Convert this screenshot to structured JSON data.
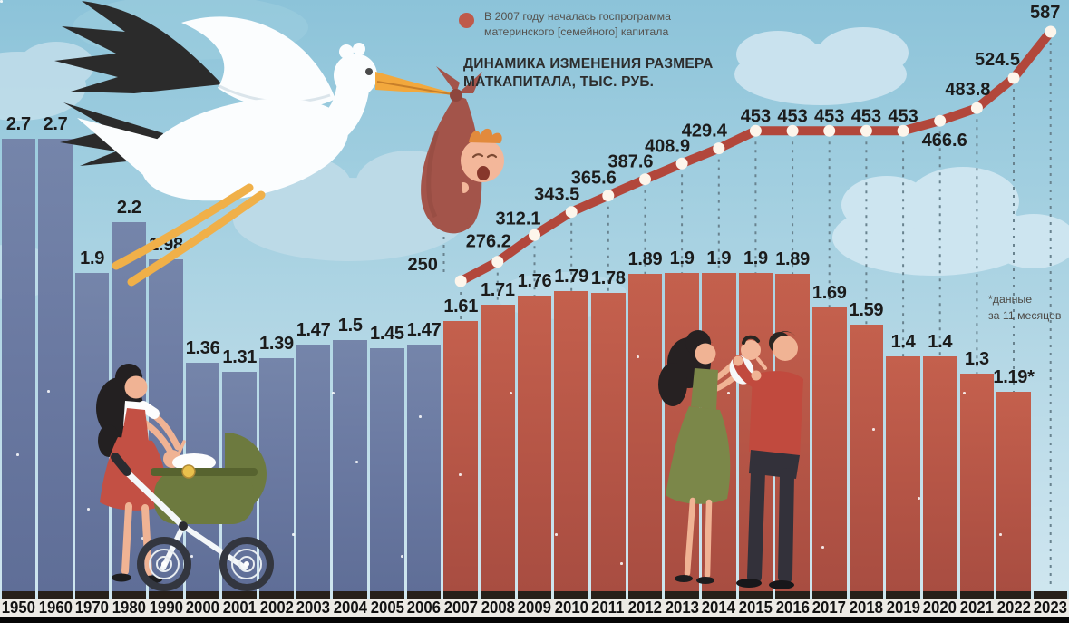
{
  "title": {
    "line1": "ДИНАМИКА ИЗМЕНЕНИЯ РАЗМЕРА",
    "line2": "МАТКАПИТАЛА, ТЫС. РУБ."
  },
  "legend": {
    "line1": "В 2007 году началась госпрограмма",
    "line2": "материнского [семейного] капитала",
    "dot_color": "#bf5a4a"
  },
  "footnote": {
    "line1": "*данные",
    "line2": "за 11 месяцев"
  },
  "colors": {
    "sky_top": "#8cc3d9",
    "sky_bottom": "#d2e8f0",
    "bar_blue": "#6e7da6",
    "bar_red": "#bf5a4a",
    "line_red": "#b2473b",
    "line_point": "#fdf5eb",
    "axis_strip": "#eceae5",
    "base_strip": "#27201a",
    "bottom_bar": "#060606"
  },
  "chart_data": {
    "type": "bar+line",
    "categories": [
      "1950",
      "1960",
      "1970",
      "1980",
      "1990",
      "2000",
      "2001",
      "2002",
      "2003",
      "2004",
      "2005",
      "2006",
      "2007",
      "2008",
      "2009",
      "2010",
      "2011",
      "2012",
      "2013",
      "2014",
      "2015",
      "2016",
      "2017",
      "2018",
      "2019",
      "2020",
      "2021",
      "2022",
      "2023"
    ],
    "bar_series": {
      "values": [
        2.7,
        2.7,
        1.9,
        2.2,
        1.98,
        1.36,
        1.31,
        1.39,
        1.47,
        1.5,
        1.45,
        1.47,
        1.61,
        1.71,
        1.76,
        1.79,
        1.78,
        1.89,
        1.9,
        1.9,
        1.9,
        1.89,
        1.69,
        1.59,
        1.4,
        1.4,
        1.3,
        1.19,
        null
      ],
      "labels": [
        "2.7",
        "2.7",
        "1.9",
        "2.2",
        "1.98",
        "1.36",
        "1.31",
        "1.39",
        "1.47",
        "1.5",
        "1.45",
        "1.47",
        "1.61",
        "1.71",
        "1.76",
        "1.79",
        "1.78",
        "1.89",
        "1.9",
        "1.9",
        "1.9",
        "1.89",
        "1.69",
        "1.59",
        "1.4",
        "1.4",
        "1.3",
        "1.19*",
        null
      ],
      "color_before_2007": "#6e7da6",
      "color_from_2007": "#bf5a4a"
    },
    "line_series": {
      "title": "ДИНАМИКА ИЗМЕНЕНИЯ РАЗМЕРА МАТКАПИТАЛА, ТЫС. РУБ.",
      "start_category": "2007",
      "values": [
        250,
        276.2,
        312.1,
        343.5,
        365.6,
        387.6,
        408.9,
        429.4,
        453,
        453,
        453,
        453,
        453,
        466.6,
        483.8,
        524.5,
        587
      ],
      "labels": [
        "250",
        "276.2",
        "312.1",
        "343.5",
        "365.6",
        "387.6",
        "408.9",
        "429.4",
        "453",
        "453",
        "453",
        "453",
        "453",
        "466.6",
        "483.8",
        "524.5",
        "587"
      ],
      "color": "#b2473b",
      "point_color": "#fdf5eb"
    },
    "gridlines": "dashed vertical drop-lines under each line point",
    "legend_position": "top-center",
    "ylim_bar": [
      0,
      3.5
    ]
  }
}
